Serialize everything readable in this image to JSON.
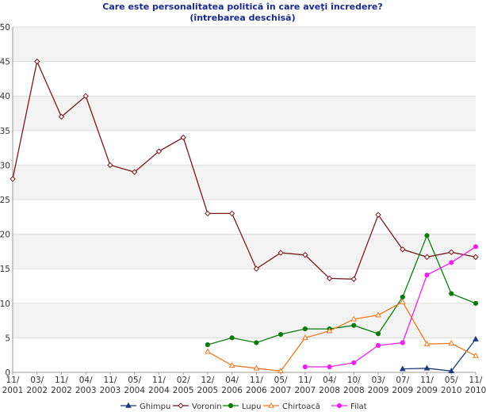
{
  "chart_data": {
    "type": "line",
    "title": "Care este personalitatea politică în care aveţi încredere?",
    "subtitle": "(întrebarea deschisă)",
    "xlabel": "",
    "ylabel": "",
    "ylim": [
      0,
      50
    ],
    "yticks": [
      "0",
      "5",
      "10",
      "15",
      "20",
      "25",
      "30",
      "35",
      "40",
      "45",
      "50"
    ],
    "categories": [
      "11/ 2001",
      "03/ 2002",
      "11/ 2002",
      "04/ 2003",
      "11/ 2003",
      "05/ 2004",
      "11/ 2004",
      "02/ 2005",
      "12/ 2005",
      "04/ 2006",
      "11/ 2006",
      "05/ 2007",
      "11/ 2007",
      "04/ 2008",
      "10/ 2008",
      "03/ 2009",
      "07/ 2009",
      "11/ 2009",
      "05/ 2010",
      "11/ 2010"
    ],
    "category_labels": [
      [
        "11/",
        "2001"
      ],
      [
        "03/",
        "2002"
      ],
      [
        "11/",
        "2002"
      ],
      [
        "04/",
        "2003"
      ],
      [
        "11/",
        "2003"
      ],
      [
        "05/",
        "2004"
      ],
      [
        "11/",
        "2004"
      ],
      [
        "02/",
        "2005"
      ],
      [
        "12/",
        "2005"
      ],
      [
        "04/",
        "2006"
      ],
      [
        "11/",
        "2006"
      ],
      [
        "05/",
        "2007"
      ],
      [
        "11/",
        "2007"
      ],
      [
        "04/",
        "2008"
      ],
      [
        "10/",
        "2008"
      ],
      [
        "03/",
        "2009"
      ],
      [
        "07/",
        "2009"
      ],
      [
        "11/",
        "2009"
      ],
      [
        "05/",
        "2010"
      ],
      [
        "11/",
        "2010"
      ]
    ],
    "grid": true,
    "legend_position": "bottom",
    "series": [
      {
        "name": "Ghimpu",
        "color": "#1f3a7a",
        "marker": "triangle",
        "values": [
          null,
          null,
          null,
          null,
          null,
          null,
          null,
          null,
          null,
          null,
          null,
          null,
          null,
          null,
          null,
          null,
          0.5,
          0.6,
          0.2,
          4.8
        ]
      },
      {
        "name": "Voronin",
        "color": "#7a1a1a",
        "marker": "diamond-open",
        "values": [
          28,
          45,
          37,
          40,
          30,
          29,
          32,
          34,
          23,
          23,
          15,
          17.3,
          17,
          13.6,
          13.5,
          22.8,
          17.8,
          16.7,
          17.4,
          16.7
        ]
      },
      {
        "name": "Lupu",
        "color": "#0a7a0a",
        "marker": "circle",
        "values": [
          null,
          null,
          null,
          null,
          null,
          null,
          null,
          null,
          4,
          5,
          4.3,
          5.5,
          6.3,
          6.3,
          6.8,
          5.6,
          10.9,
          19.8,
          11.4,
          10
        ]
      },
      {
        "name": "Chirtoacă",
        "color": "#f07820",
        "marker": "triangle-open",
        "values": [
          null,
          null,
          null,
          null,
          null,
          null,
          null,
          null,
          3,
          1,
          0.6,
          0.2,
          5,
          6,
          7.7,
          8.3,
          10.2,
          4.1,
          4.2,
          2.4
        ]
      },
      {
        "name": "Filat",
        "color": "#ee22ee",
        "marker": "circle",
        "values": [
          null,
          null,
          null,
          null,
          null,
          null,
          null,
          null,
          null,
          null,
          null,
          null,
          0.8,
          0.8,
          1.4,
          3.9,
          4.3,
          14.1,
          15.9,
          18.2
        ]
      }
    ]
  }
}
